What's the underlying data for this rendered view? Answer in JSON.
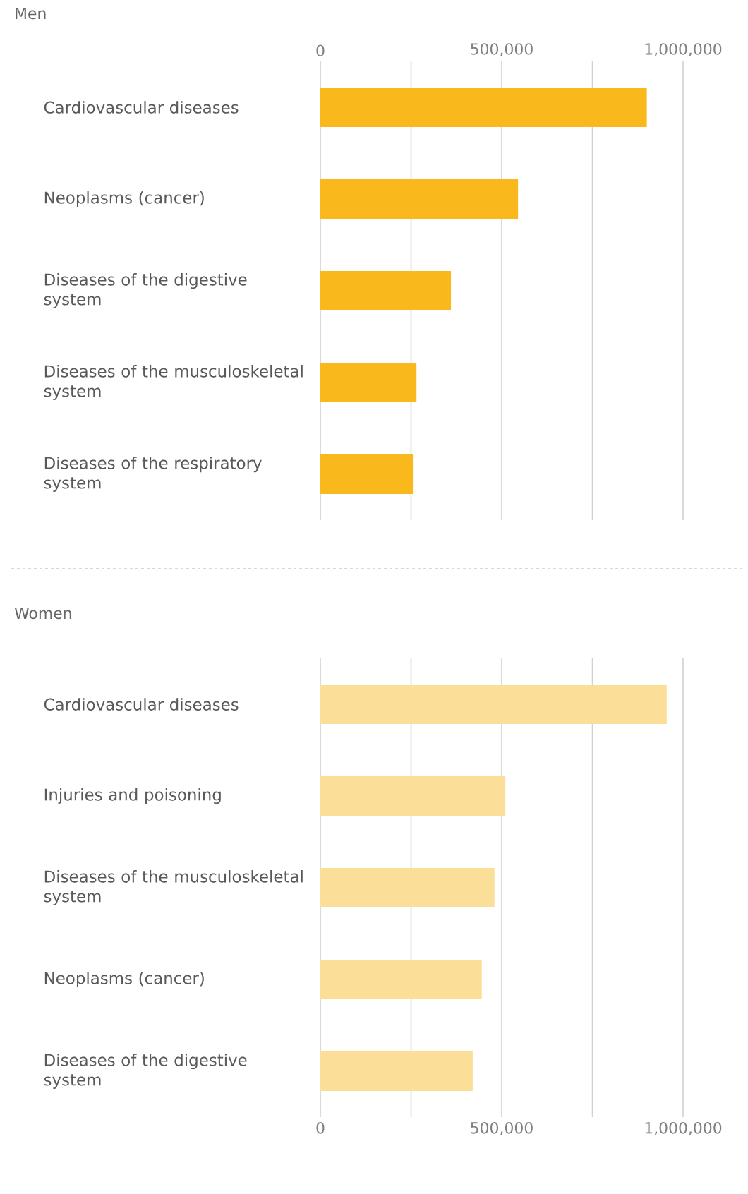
{
  "chart_data": [
    {
      "type": "bar",
      "orientation": "horizontal",
      "title": "Men",
      "categories": [
        "Cardiovascular diseases",
        "Neoplasms (cancer)",
        "Diseases of the digestive system",
        "Diseases of the musculoskeletal system",
        "Diseases of the respiratory system"
      ],
      "values": [
        900000,
        545000,
        360000,
        265000,
        255000
      ],
      "color": "#f9b91c",
      "xlim": [
        0,
        1000000
      ],
      "xticks": [
        0,
        {
          "value": 250000,
          "label": null
        },
        {
          "value": 500000,
          "label": "500,000"
        },
        {
          "value": 750000,
          "label": null
        },
        {
          "value": 1000000,
          "label": "1,000,000"
        }
      ],
      "grid": "x"
    },
    {
      "type": "bar",
      "orientation": "horizontal",
      "title": "Women",
      "categories": [
        "Cardiovascular diseases",
        "Injuries and poisoning",
        "Diseases of the musculoskeletal system",
        "Neoplasms (cancer)",
        "Diseases of the digestive system"
      ],
      "values": [
        955000,
        510000,
        480000,
        445000,
        420000
      ],
      "color": "#fbdf98",
      "xlim": [
        0,
        1000000
      ],
      "xticks": [
        0,
        {
          "value": 250000,
          "label": null
        },
        {
          "value": 500000,
          "label": "500,000"
        },
        {
          "value": 750000,
          "label": null
        },
        {
          "value": 1000000,
          "label": "1,000,000"
        }
      ],
      "grid": "x"
    }
  ]
}
